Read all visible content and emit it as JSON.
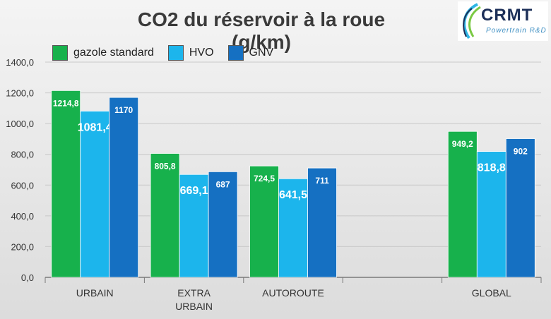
{
  "title": "CO2 du réservoir à la roue (g/km)",
  "logo": {
    "text": "CRMT",
    "subtitle": "Powertrain R&D"
  },
  "legend": [
    {
      "label": "gazole standard",
      "color": "#17b14c"
    },
    {
      "label": "HVO",
      "color": "#1cb5ec"
    },
    {
      "label": "GNV",
      "color": "#1570c2"
    }
  ],
  "chart_data": {
    "type": "bar",
    "title": "CO2 du réservoir à la roue (g/km)",
    "categories": [
      [
        "URBAIN"
      ],
      [
        "EXTRA",
        "URBAIN"
      ],
      [
        "AUTOROUTE"
      ],
      [],
      [
        "GLOBAL"
      ]
    ],
    "series": [
      {
        "name": "gazole standard",
        "color": "#17b14c",
        "values": [
          1214.8,
          805.8,
          724.5,
          null,
          949.2
        ],
        "labels": [
          "1214,8",
          "805,8",
          "724,5",
          "",
          "949,2"
        ]
      },
      {
        "name": "HVO",
        "color": "#1cb5ec",
        "values": [
          1081.4,
          669.1,
          641.5,
          null,
          818.8
        ],
        "labels": [
          "1081,4",
          "669,1",
          "641,5",
          "",
          "818,8"
        ]
      },
      {
        "name": "GNV",
        "color": "#1570c2",
        "values": [
          1170,
          687,
          711,
          null,
          902
        ],
        "labels": [
          "1170",
          "687",
          "711",
          "",
          "902"
        ]
      }
    ],
    "ylim": [
      0,
      1400
    ],
    "yticks": [
      0,
      200,
      400,
      600,
      800,
      1000,
      1200,
      1400
    ],
    "ytick_labels": [
      "0,0",
      "200,0",
      "400,0",
      "600,0",
      "800,0",
      "1000,0",
      "1200,0",
      "1400,0"
    ],
    "grid": true,
    "legend_position": "top-left"
  }
}
